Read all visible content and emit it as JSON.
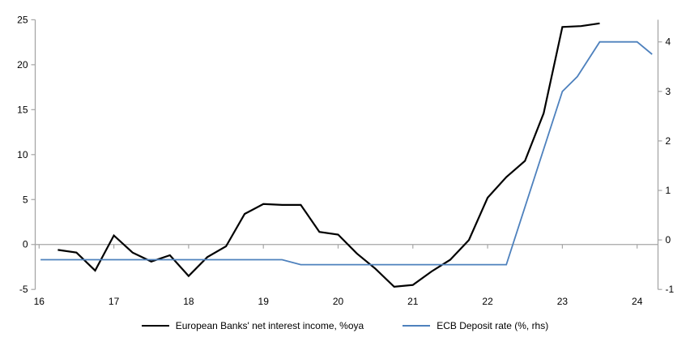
{
  "chart_data": {
    "type": "line",
    "title": "",
    "x_axis": {
      "ticks": [
        16,
        17,
        18,
        19,
        20,
        21,
        22,
        23,
        24
      ],
      "min": 16,
      "max": 24.28
    },
    "left_axis": {
      "ticks": [
        25,
        20,
        15,
        10,
        5,
        0,
        -5
      ],
      "min": -5,
      "max": 25
    },
    "right_axis": {
      "ticks": [
        4,
        3,
        2,
        1,
        0,
        -1
      ],
      "min": -1,
      "max": 4
    },
    "grid": "zero-line-only",
    "legend_position": "bottom-center",
    "series": [
      {
        "name": "European Banks' net interest income, %oya",
        "axis": "left",
        "color": "#000000",
        "width": 2.2,
        "x": [
          16.25,
          16.5,
          16.75,
          17.0,
          17.25,
          17.5,
          17.75,
          18.0,
          18.25,
          18.5,
          18.75,
          19.0,
          19.25,
          19.5,
          19.75,
          20.0,
          20.25,
          20.5,
          20.75,
          21.0,
          21.25,
          21.5,
          21.75,
          22.0,
          22.25,
          22.5,
          22.75,
          23.0,
          23.25,
          23.5
        ],
        "y": [
          -0.6,
          -0.9,
          -2.9,
          1.0,
          -0.9,
          -1.9,
          -1.2,
          -3.5,
          -1.4,
          -0.2,
          3.4,
          4.5,
          4.4,
          4.4,
          1.4,
          1.1,
          -1.0,
          -2.7,
          -4.7,
          -4.5,
          -3.0,
          -1.7,
          0.5,
          5.2,
          7.5,
          9.3,
          14.6,
          24.2,
          24.3,
          24.6
        ]
      },
      {
        "name": "ECB Deposit rate (%, rhs)",
        "axis": "right",
        "color": "#4e81bd",
        "width": 1.8,
        "x": [
          16.02,
          19.25,
          19.5,
          22.25,
          23.0,
          23.2,
          23.5,
          24.0,
          24.2
        ],
        "y": [
          -0.4,
          -0.4,
          -0.5,
          -0.5,
          3.0,
          3.3,
          4.0,
          4.0,
          3.75
        ]
      }
    ],
    "colors": {
      "axis": "#a6a6a6",
      "zero_line": "#a6a6a6",
      "tick_text": "#000000"
    }
  }
}
